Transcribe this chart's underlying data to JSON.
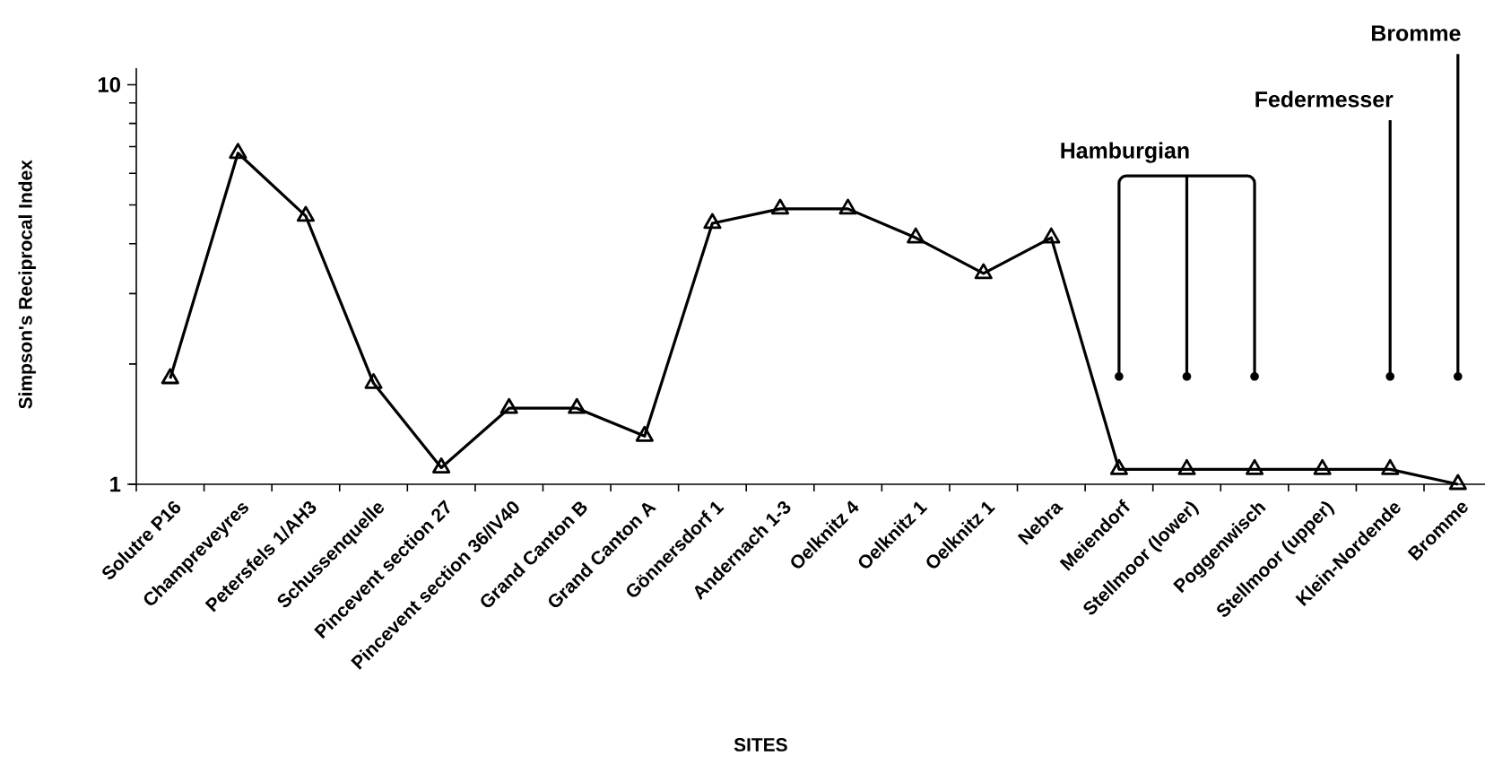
{
  "chart_data": {
    "type": "line",
    "xlabel": "SITES",
    "ylabel": "Simpson's Reciprocal Index",
    "categories": [
      "Solutre P16",
      "Champreveyres",
      "Petersfels 1/AH3",
      "Schussenquelle",
      "Pincevent section 27",
      "Pincevent section 36/IV40",
      "Grand Canton B",
      "Grand Canton A",
      "Gönnersdorf 1",
      "Andernach 1-3",
      "Oelknitz 4",
      "Oelknitz 1",
      "Oelknitz 1",
      "Nebra",
      "Meiendorf",
      "Stellmoor (lower)",
      "Poggenwisch",
      "Stellmoor (upper)",
      "Klein-Nordende",
      "Bromme"
    ],
    "values": [
      1.84,
      6.74,
      4.69,
      1.79,
      1.1,
      1.55,
      1.55,
      1.32,
      4.5,
      4.89,
      4.89,
      4.14,
      3.37,
      4.14,
      1.09,
      1.09,
      1.09,
      1.09,
      1.09,
      1.0
    ],
    "color": "#000000",
    "log": "y",
    "ylim": [
      1,
      11
    ],
    "yticks": [
      1,
      10
    ],
    "marker": "triangle",
    "line_style": "solid",
    "annotations": [
      "Hamburgian",
      "Federmesser",
      "Bromme"
    ]
  }
}
